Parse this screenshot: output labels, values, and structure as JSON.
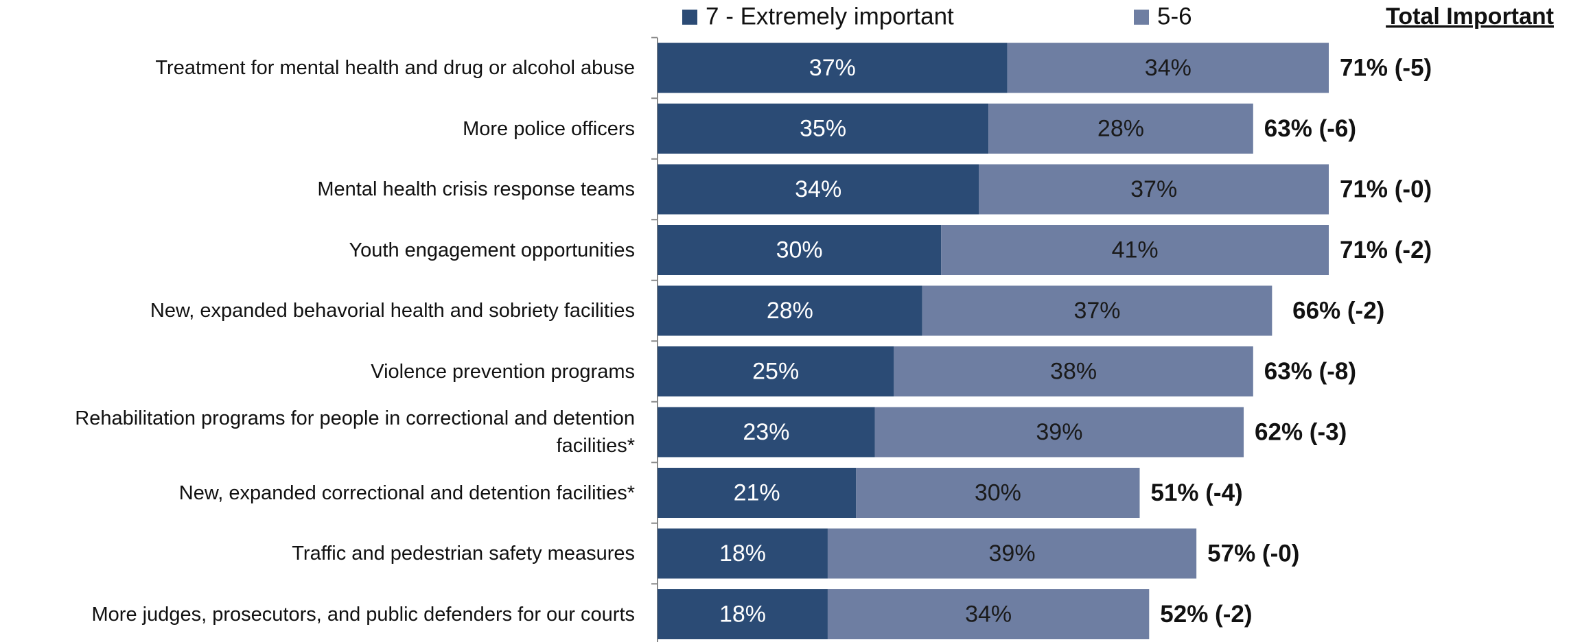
{
  "chart_data": {
    "type": "stacked-bar-horizontal",
    "categories": [
      "Treatment for mental health and drug or alcohol abuse",
      "More police officers",
      "Mental health crisis response teams",
      "Youth engagement opportunities",
      "New, expanded behavorial health and sobriety facilities",
      "Violence prevention programs",
      "Rehabilitation programs for people in correctional and detention facilities*",
      "New, expanded correctional and detention facilities*",
      "Traffic and pedestrian safety measures",
      "More judges, prosecutors, and public defenders for our courts"
    ],
    "series": [
      {
        "name": "7 - Extremely important",
        "color": "#2b4b75",
        "label_color": "#ffffff",
        "values": [
          37,
          35,
          34,
          30,
          28,
          25,
          23,
          21,
          18,
          18
        ],
        "value_labels": [
          "37%",
          "35%",
          "34%",
          "30%",
          "28%",
          "25%",
          "23%",
          "21%",
          "18%",
          "18%"
        ]
      },
      {
        "name": "5-6",
        "color": "#6e7ea2",
        "label_color": "#1a1a1a",
        "values": [
          34,
          28,
          37,
          41,
          37,
          38,
          39,
          30,
          39,
          34
        ],
        "value_labels": [
          "34%",
          "28%",
          "37%",
          "41%",
          "37%",
          "38%",
          "39%",
          "30%",
          "39%",
          "34%"
        ]
      }
    ],
    "totals": {
      "name": "Total Important",
      "values": [
        71,
        63,
        71,
        71,
        66,
        63,
        62,
        51,
        57,
        52
      ],
      "value_labels": [
        "71% (-5)",
        "63% (-6)",
        "71% (-0)",
        "71% (-2)",
        "66% (-2)",
        "63% (-8)",
        "62% (-3)",
        "51% (-4)",
        "57% (-0)",
        "52% (-2)"
      ]
    },
    "legend": "top"
  }
}
